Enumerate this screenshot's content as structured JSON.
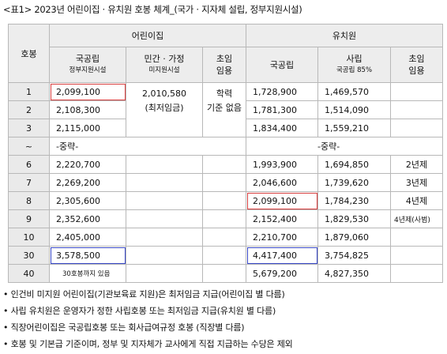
{
  "caption": "<표1> 2023년 어린이집 · 유치원 호봉 체계_(국가 · 지자체 설립, 정부지원시설)",
  "header": {
    "rank": "호봉",
    "daycare": "어린이집",
    "kindergarten": "유치원",
    "dc_public": "국공립",
    "dc_public_sub": "정부지원시설",
    "dc_private": "민간 · 가정",
    "dc_private_sub": "미지원시설",
    "dc_initial": "초임",
    "dc_initial_sub": "임용",
    "kg_public": "국공립",
    "kg_private": "사립",
    "kg_private_sub": "국공립 85%",
    "kg_initial": "초임",
    "kg_initial_sub": "임용"
  },
  "merged": {
    "private_amount": "2,010,580",
    "private_note": "(최저임금)",
    "initial_line1": "학력",
    "initial_line2": "기준 없음"
  },
  "rows": [
    {
      "rank": "1",
      "dc_public": "2,099,100",
      "kg_public": "1,728,900",
      "kg_private": "1,469,570",
      "kg_initial": ""
    },
    {
      "rank": "2",
      "dc_public": "2,108,300",
      "kg_public": "1,781,300",
      "kg_private": "1,514,090",
      "kg_initial": ""
    },
    {
      "rank": "3",
      "dc_public": "2,115,000",
      "kg_public": "1,834,400",
      "kg_private": "1,559,210",
      "kg_initial": ""
    },
    {
      "rank": "~",
      "dc_public": "-중략-",
      "kg_public": "-중략-",
      "kg_private": "",
      "kg_initial": ""
    },
    {
      "rank": "6",
      "dc_public": "2,220,700",
      "kg_public": "1,993,900",
      "kg_private": "1,694,850",
      "kg_initial": "2년제"
    },
    {
      "rank": "7",
      "dc_public": "2,269,200",
      "kg_public": "2,046,600",
      "kg_private": "1,739,620",
      "kg_initial": "3년제"
    },
    {
      "rank": "8",
      "dc_public": "2,305,600",
      "kg_public": "2,099,100",
      "kg_private": "1,784,230",
      "kg_initial": "4년제"
    },
    {
      "rank": "9",
      "dc_public": "2,352,600",
      "kg_public": "2,152,400",
      "kg_private": "1,829,530",
      "kg_initial": "4년제(사범)"
    },
    {
      "rank": "10",
      "dc_public": "2,405,000",
      "kg_public": "2,210,700",
      "kg_private": "1,879,060",
      "kg_initial": ""
    },
    {
      "rank": "30",
      "dc_public": "3,578,500",
      "kg_public": "4,417,400",
      "kg_private": "3,754,825",
      "kg_initial": ""
    },
    {
      "rank": "40",
      "dc_public": "30호봉까지 있음",
      "kg_public": "5,679,200",
      "kg_private": "4,827,350",
      "kg_initial": ""
    }
  ],
  "notes": [
    "• 인건비 미지원 어린이집(기관보육료 지원)은 최저임금 지급(어린이집 별 다름)",
    "• 사립 유치원은 운영자가 정한 사립호봉 또는 최저임금 지급(유치원 별 다름)",
    "• 직장어린이집은 국공립호봉 또는 회사급여규정 호봉 (직장별 다름)",
    "• 호봉 및 기본급 기준이며, 정부 및 지자체가 교사에게 직접 지급하는 수당은 제외"
  ]
}
